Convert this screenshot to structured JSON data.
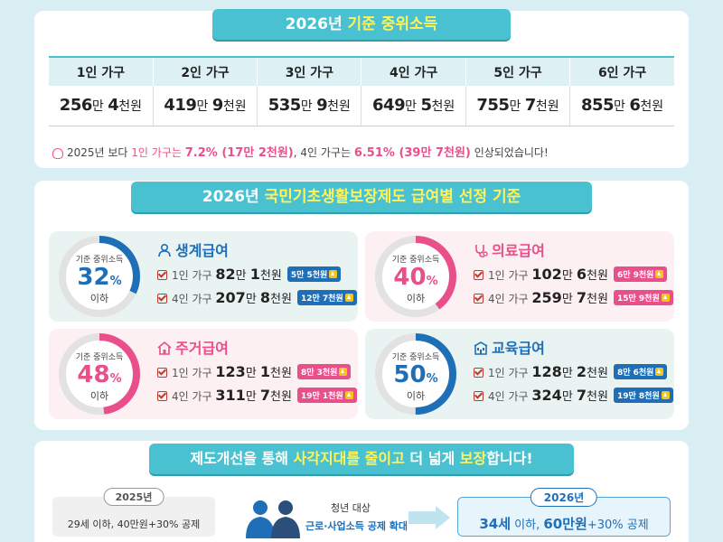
{
  "section1": {
    "title_a": "2026년 ",
    "title_b": "기준 중위소득",
    "headers": [
      "1인 가구",
      "2인 가구",
      "3인 가구",
      "4인 가구",
      "5인 가구",
      "6인 가구"
    ],
    "values": [
      {
        "man": "256",
        "u1": "만 ",
        "cheon": "4",
        "u2": "천원"
      },
      {
        "man": "419",
        "u1": "만 ",
        "cheon": "9",
        "u2": "천원"
      },
      {
        "man": "535",
        "u1": "만 ",
        "cheon": "9",
        "u2": "천원"
      },
      {
        "man": "649",
        "u1": "만 ",
        "cheon": "5",
        "u2": "천원"
      },
      {
        "man": "755",
        "u1": "만 ",
        "cheon": "7",
        "u2": "천원"
      },
      {
        "man": "855",
        "u1": "만 ",
        "cheon": "6",
        "u2": "천원"
      }
    ],
    "note": {
      "a": "2025년 보다 ",
      "b": "1인 가구는 ",
      "c": "7.2% (17만 2천원)",
      "d": ", 4인 가구는 ",
      "e": "6.51% (39만 7천원)",
      "f": " 인상되었습니다!"
    }
  },
  "section2": {
    "title_a": "2026년 ",
    "title_b": "국민기초생활보장제도 급여별 선정 기준",
    "gauge_label": "기준 중위소득",
    "gauge_suffix": "이하",
    "pct_sign": "%",
    "row1_label": "1인 가구",
    "row2_label": "4인 가구",
    "benefits": [
      {
        "title": "생계급여",
        "icon": "person-icon",
        "percent": "32",
        "percent_value": 32,
        "row1_man": "82",
        "row1_cheon": "1",
        "row1_tag": "5만 5천원",
        "row2_man": "207",
        "row2_cheon": "8",
        "row2_tag": "12만 7천원"
      },
      {
        "title": "의료급여",
        "icon": "stethoscope-icon",
        "percent": "40",
        "percent_value": 40,
        "row1_man": "102",
        "row1_cheon": "6",
        "row1_tag": "6만 9천원",
        "row2_man": "259",
        "row2_cheon": "7",
        "row2_tag": "15만 9천원"
      },
      {
        "title": "주거급여",
        "icon": "house-icon",
        "percent": "48",
        "percent_value": 48,
        "row1_man": "123",
        "row1_cheon": "1",
        "row1_tag": "8만 3천원",
        "row2_man": "311",
        "row2_cheon": "7",
        "row2_tag": "19만 1천원"
      },
      {
        "title": "교육급여",
        "icon": "school-icon",
        "percent": "50",
        "percent_value": 50,
        "row1_man": "128",
        "row1_cheon": "2",
        "row1_tag": "8만 6천원",
        "row2_man": "324",
        "row2_cheon": "7",
        "row2_tag": "19만 8천원"
      }
    ],
    "unit_man": "만 ",
    "unit_cheon": "천원"
  },
  "section3": {
    "title_a": "제도개선을 통해 ",
    "title_b": "사각지대를 줄이고",
    "title_c": " 더 넓게 ",
    "title_d": "보장",
    "title_e": "합니다!",
    "old_year": "2025년",
    "old_text": "29세 이하, 40만원+30% 공제",
    "mid_a": "청년 대상",
    "mid_b": "근로·사업소득 공제 확대",
    "new_year": "2026년",
    "new_a": "34세",
    "new_b": " 이하, ",
    "new_c": "60만원",
    "new_d": "+30% 공제"
  },
  "colors": {
    "accent": "#49c1d0",
    "blue": "#1f6fb8",
    "pink": "#e94f8a",
    "highlight": "#fff35a"
  }
}
